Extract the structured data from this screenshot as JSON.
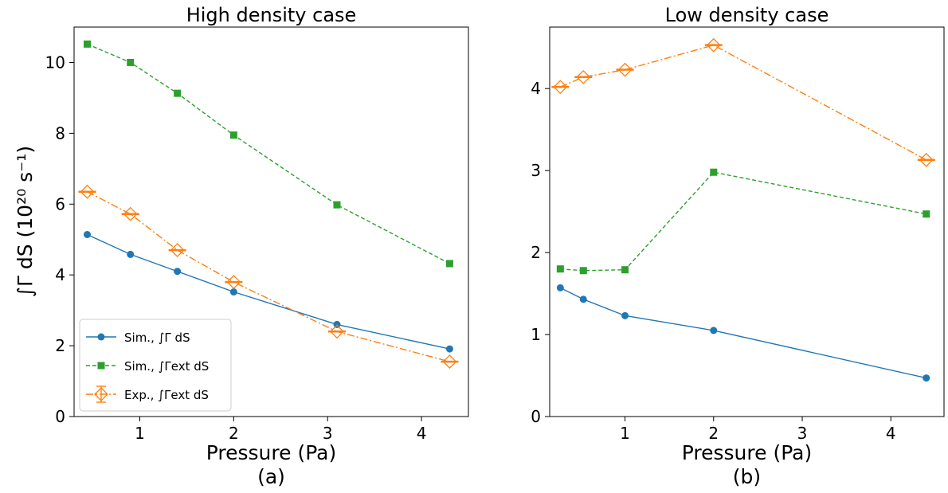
{
  "figure": {
    "ylabel": "∫Γ dS (10²⁰ s⁻¹)",
    "colors": {
      "sim_total": "#1f77b4",
      "sim_ext": "#2ca02c",
      "exp_ext": "#ff7f0e"
    }
  },
  "chart_data": [
    {
      "type": "line",
      "title": "High density case",
      "xlabel": "Pressure (Pa)",
      "sublabel": "(a)",
      "ylabel": "∫Γ dS (10²⁰ s⁻¹)",
      "xlim": [
        0.3,
        4.5
      ],
      "ylim": [
        0,
        11
      ],
      "xticks": [
        1,
        2,
        3,
        4
      ],
      "yticks": [
        0,
        2,
        4,
        6,
        8,
        10
      ],
      "xtick_labels": [
        "1",
        "2",
        "3",
        "4"
      ],
      "ytick_labels": [
        "0",
        "2",
        "4",
        "6",
        "8",
        "10"
      ],
      "legend": {
        "position": "lower-left",
        "entries": [
          {
            "series": 0,
            "label": "Sim., ∫Γ dS"
          },
          {
            "series": 1,
            "label": "Sim., ∫Γext dS"
          },
          {
            "series": 2,
            "label": "Exp., ∫Γext dS"
          }
        ]
      },
      "series": [
        {
          "color": "#1f77b4",
          "marker": "circle",
          "linestyle": "solid",
          "x": [
            0.44,
            0.9,
            1.4,
            2.0,
            3.1,
            4.3
          ],
          "y": [
            5.14,
            4.58,
            4.1,
            3.52,
            2.6,
            1.91
          ]
        },
        {
          "color": "#2ca02c",
          "marker": "square",
          "linestyle": "dashed",
          "x": [
            0.44,
            0.9,
            1.4,
            2.0,
            3.1,
            4.3
          ],
          "y": [
            10.52,
            10.0,
            9.13,
            7.95,
            5.98,
            4.32
          ]
        },
        {
          "color": "#ff7f0e",
          "marker": "diamond",
          "linestyle": "dashdot",
          "errorbars": true,
          "x": [
            0.44,
            0.9,
            1.4,
            2.0,
            3.1,
            4.3
          ],
          "y": [
            6.35,
            5.72,
            4.7,
            3.8,
            2.4,
            1.55
          ]
        }
      ]
    },
    {
      "type": "line",
      "title": "Low density case",
      "xlabel": "Pressure (Pa)",
      "sublabel": "(b)",
      "xlim": [
        0.15,
        4.6
      ],
      "ylim": [
        0,
        4.75
      ],
      "xticks": [
        1,
        2,
        3,
        4
      ],
      "yticks": [
        0,
        1,
        2,
        3,
        4
      ],
      "xtick_labels": [
        "1",
        "2",
        "3",
        "4"
      ],
      "ytick_labels": [
        "0",
        "1",
        "2",
        "3",
        "4"
      ],
      "series": [
        {
          "color": "#1f77b4",
          "marker": "circle",
          "linestyle": "solid",
          "x": [
            0.27,
            0.53,
            1.0,
            2.0,
            4.4
          ],
          "y": [
            1.57,
            1.43,
            1.23,
            1.05,
            0.47
          ]
        },
        {
          "color": "#2ca02c",
          "marker": "square",
          "linestyle": "dashed",
          "x": [
            0.27,
            0.53,
            1.0,
            2.0,
            4.4
          ],
          "y": [
            1.8,
            1.78,
            1.79,
            2.98,
            2.47
          ]
        },
        {
          "color": "#ff7f0e",
          "marker": "diamond",
          "linestyle": "dashdot",
          "errorbars": true,
          "x": [
            0.27,
            0.53,
            1.0,
            2.0,
            4.4
          ],
          "y": [
            4.02,
            4.14,
            4.23,
            4.53,
            3.13
          ]
        }
      ]
    }
  ]
}
